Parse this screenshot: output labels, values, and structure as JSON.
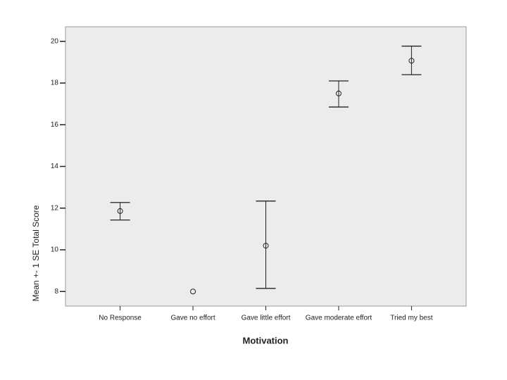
{
  "chart_data": {
    "type": "errorbar",
    "x_label": "Motivation",
    "y_label": "Mean +- 1 SE Total Score",
    "categories": [
      "No Response",
      "Gave no effort",
      "Gave little effort",
      "Gave moderate effort",
      "Tried my best"
    ],
    "values": [
      11.86,
      8.0,
      10.2,
      17.5,
      19.07
    ],
    "lower": [
      11.43,
      null,
      8.15,
      16.85,
      18.4
    ],
    "upper": [
      12.27,
      null,
      12.34,
      18.1,
      19.77
    ],
    "ylim": [
      7.3,
      20.7
    ],
    "yticks": [
      8,
      10,
      12,
      14,
      16,
      18,
      20
    ],
    "background": "#ececec",
    "color": "#222222"
  }
}
